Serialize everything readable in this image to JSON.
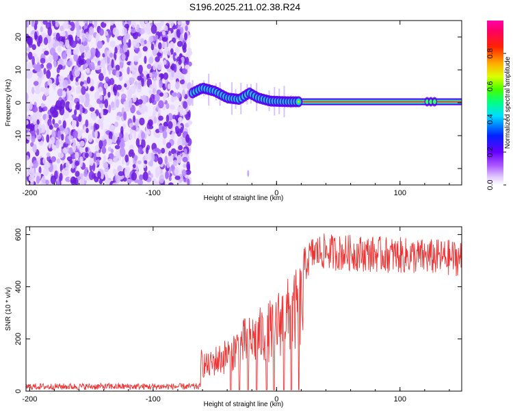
{
  "title": "S196.2025.211.02.38.R24",
  "chart_data": [
    {
      "type": "heatmap",
      "xlabel": "Height of straight line (km)",
      "ylabel": "Frequency (Hz)",
      "xlim": [
        -203,
        150
      ],
      "ylim": [
        -25,
        25
      ],
      "xticks": [
        -200,
        -100,
        0,
        100
      ],
      "yticks": [
        20,
        10,
        0,
        -10,
        -20
      ],
      "colorbar": {
        "label": "Normalized spectral amplitude",
        "range": [
          0,
          1
        ],
        "ticks": [
          "0.0",
          "0.2",
          "0.4",
          "0.6",
          "0.8"
        ],
        "colors": [
          "#ffffff",
          "#cc88ff",
          "#8800ee",
          "#0000ff",
          "#00ffff",
          "#00ff00",
          "#ffff00",
          "#ff8800",
          "#ff0000",
          "#ff00aa"
        ]
      },
      "noise_region_x": [
        -203,
        -70
      ],
      "signal_start_x": -70,
      "center_frequency_track": [
        {
          "x": -68,
          "y": 3.0
        },
        {
          "x": -60,
          "y": 4.5
        },
        {
          "x": -50,
          "y": 3.5
        },
        {
          "x": -40,
          "y": 1.5
        },
        {
          "x": -30,
          "y": 1.0
        },
        {
          "x": -22,
          "y": 3.0
        },
        {
          "x": -15,
          "y": 1.5
        },
        {
          "x": -5,
          "y": 0.5
        },
        {
          "x": 10,
          "y": 0.3
        },
        {
          "x": 20,
          "y": 0.3
        },
        {
          "x": 150,
          "y": 0.3
        }
      ]
    },
    {
      "type": "line",
      "xlabel": "Height of straight line (km)",
      "ylabel": "SNR (10 * v/v)",
      "xlim": [
        -203,
        150
      ],
      "ylim": [
        0,
        630
      ],
      "xticks": [
        -200,
        -100,
        0,
        100
      ],
      "yticks": [
        0,
        200,
        400,
        600
      ],
      "color": "#ee3333",
      "series": [
        {
          "x": [
            -203,
            -62,
            -61,
            -55,
            -50,
            -45,
            -40,
            -35,
            -30,
            -25,
            -20,
            -15,
            -10,
            -5,
            0,
            5,
            10,
            15,
            18,
            20,
            25,
            30,
            40,
            50,
            60,
            80,
            100,
            120,
            150
          ],
          "y": [
            15,
            15,
            150,
            130,
            160,
            170,
            190,
            210,
            240,
            260,
            270,
            290,
            300,
            320,
            350,
            380,
            400,
            420,
            440,
            460,
            500,
            530,
            535,
            530,
            530,
            525,
            520,
            515,
            510
          ]
        }
      ],
      "dropout_x": [
        -37,
        -30,
        -23,
        -16,
        -8,
        -2,
        6,
        12,
        18
      ]
    }
  ]
}
